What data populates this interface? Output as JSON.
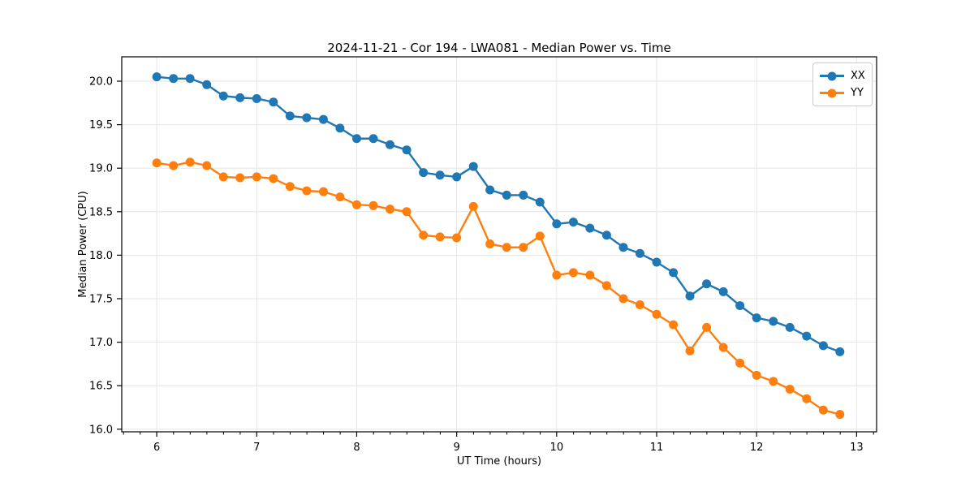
{
  "figure": {
    "title": "2024-11-21 - Cor 194 - LWA081 - Median Power vs. Time",
    "xlabel": "UT Time (hours)",
    "ylabel": "Median Power (CPU)"
  },
  "legend": {
    "position": "upper right",
    "items": [
      {
        "label": "XX",
        "color": "#1f77b4"
      },
      {
        "label": "YY",
        "color": "#ff7f0e"
      }
    ]
  },
  "chart_data": {
    "type": "line",
    "title": "2024-11-21 - Cor 194 - LWA081 - Median Power vs. Time",
    "xlabel": "UT Time (hours)",
    "ylabel": "Median Power (CPU)",
    "grid": true,
    "legend_position": "upper right",
    "marker": "circle",
    "xlim": [
      5.65,
      13.2
    ],
    "ylim": [
      15.97,
      20.28
    ],
    "xticks": {
      "values": [
        6,
        7,
        8,
        9,
        10,
        11,
        12,
        13
      ],
      "labels": [
        "6",
        "7",
        "8",
        "9",
        "10",
        "11",
        "12",
        "13"
      ]
    },
    "yticks": {
      "values": [
        16.0,
        16.5,
        17.0,
        17.5,
        18.0,
        18.5,
        19.0,
        19.5,
        20.0
      ],
      "labels": [
        "16.0",
        "16.5",
        "17.0",
        "17.5",
        "18.0",
        "18.5",
        "19.0",
        "19.5",
        "20.0"
      ]
    },
    "minor_xtick_step": 0.1667,
    "x": [
      6.0,
      6.167,
      6.333,
      6.5,
      6.667,
      6.833,
      7.0,
      7.167,
      7.333,
      7.5,
      7.667,
      7.833,
      8.0,
      8.167,
      8.333,
      8.5,
      8.667,
      8.833,
      9.0,
      9.167,
      9.333,
      9.5,
      9.667,
      9.833,
      10.0,
      10.167,
      10.333,
      10.5,
      10.667,
      10.833,
      11.0,
      11.167,
      11.333,
      11.5,
      11.667,
      11.833,
      12.0,
      12.167,
      12.333,
      12.5,
      12.667,
      12.833
    ],
    "series": [
      {
        "name": "XX",
        "color": "#1f77b4",
        "values": [
          20.05,
          20.03,
          20.03,
          19.96,
          19.83,
          19.81,
          19.8,
          19.76,
          19.6,
          19.58,
          19.56,
          19.46,
          19.34,
          19.34,
          19.27,
          19.21,
          18.95,
          18.92,
          18.9,
          19.02,
          18.75,
          18.69,
          18.69,
          18.61,
          18.36,
          18.38,
          18.31,
          18.23,
          18.09,
          18.02,
          17.92,
          17.8,
          17.53,
          17.67,
          17.58,
          17.42,
          17.28,
          17.24,
          17.17,
          17.07,
          16.96,
          16.89
        ]
      },
      {
        "name": "YY",
        "color": "#ff7f0e",
        "values": [
          19.06,
          19.03,
          19.07,
          19.03,
          18.9,
          18.89,
          18.9,
          18.88,
          18.79,
          18.74,
          18.73,
          18.67,
          18.58,
          18.57,
          18.53,
          18.5,
          18.23,
          18.21,
          18.2,
          18.56,
          18.13,
          18.09,
          18.09,
          18.22,
          17.77,
          17.8,
          17.77,
          17.65,
          17.5,
          17.43,
          17.32,
          17.2,
          16.9,
          17.17,
          16.94,
          16.76,
          16.62,
          16.55,
          16.46,
          16.35,
          16.22,
          16.17
        ]
      }
    ],
    "style": {
      "grid_color": "#e6e6e6",
      "spine_color": "#000000",
      "tick_color": "#000000",
      "background": "#ffffff"
    }
  }
}
